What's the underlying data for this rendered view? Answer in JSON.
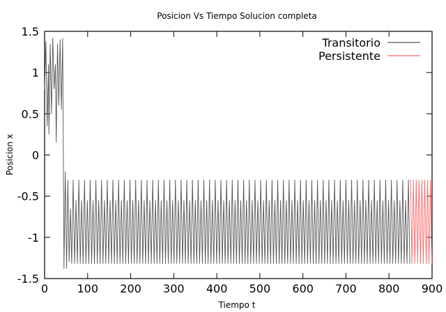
{
  "chart_data": {
    "type": "line",
    "title": "Posicion Vs Tiempo Solucion completa",
    "xlabel": "Tiempo t",
    "ylabel": "Posicion x",
    "xlim": [
      0,
      900
    ],
    "ylim": [
      -1.5,
      1.5
    ],
    "x_ticks": [
      "0",
      "100",
      "200",
      "300",
      "400",
      "500",
      "600",
      "700",
      "800",
      "900"
    ],
    "x_tick_values": [
      0,
      100,
      200,
      300,
      400,
      500,
      600,
      700,
      800,
      900
    ],
    "y_ticks": [
      "1.5",
      "1",
      "0.5",
      "0",
      "-0.5",
      "-1",
      "-1.5"
    ],
    "y_tick_values": [
      1.5,
      1,
      0.5,
      0,
      -0.5,
      -1,
      -1.5
    ],
    "legend_position": "top-right",
    "series": [
      {
        "name": "Transitorio",
        "color": "#555555",
        "x_range": [
          0,
          850
        ],
        "transient_peaks": [
          [
            0,
            0.8
          ],
          [
            3,
            1.38
          ],
          [
            6,
            0.35
          ],
          [
            9,
            1.1
          ],
          [
            10,
            0.25
          ],
          [
            13,
            1.35
          ],
          [
            16,
            0.5
          ],
          [
            19,
            1.42
          ],
          [
            22,
            0.8
          ],
          [
            25,
            1.1
          ],
          [
            27,
            0.15
          ],
          [
            30,
            1.35
          ],
          [
            33,
            0.6
          ],
          [
            36,
            1.4
          ],
          [
            39,
            0.55
          ],
          [
            42,
            1.42
          ],
          [
            45,
            -1.38
          ],
          [
            48,
            -0.2
          ],
          [
            51,
            -1.38
          ],
          [
            54,
            -0.3
          ],
          [
            57,
            -1.3
          ],
          [
            60,
            -0.65
          ],
          [
            63,
            -1.32
          ]
        ],
        "steady_max": -0.3,
        "steady_min": -1.32,
        "steady_mid_min": -0.55,
        "period": 6.6
      },
      {
        "name": "Persistente",
        "color": "#ff6666",
        "x_range": [
          850,
          900
        ],
        "steady_max": -0.3,
        "steady_min": -1.32,
        "period": 6.6
      }
    ]
  }
}
